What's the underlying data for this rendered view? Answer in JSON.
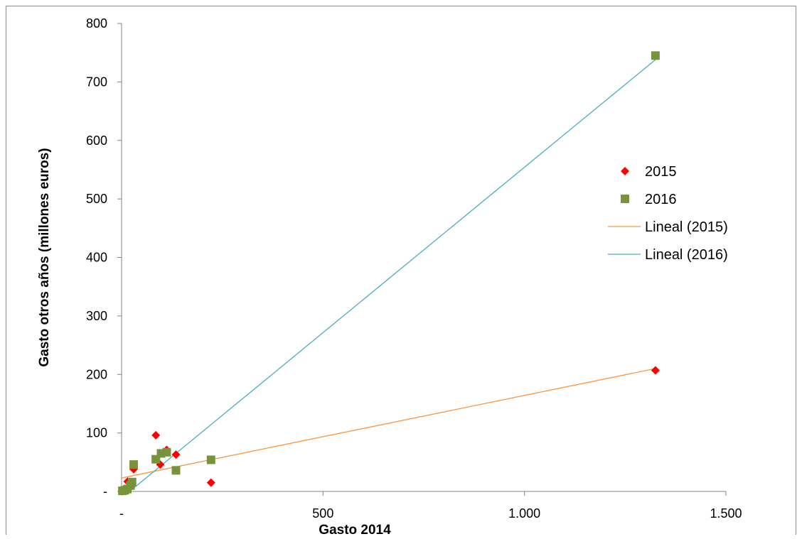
{
  "chart_data": {
    "type": "scatter",
    "xlabel": "Gasto 2014",
    "ylabel": "Gasto otros años (millones euros)",
    "xlim": [
      0,
      1500
    ],
    "ylim": [
      0,
      800
    ],
    "x_ticks": [
      {
        "value": 0,
        "label": "-"
      },
      {
        "value": 500,
        "label": "500"
      },
      {
        "value": 1000,
        "label": "1.000"
      },
      {
        "value": 1500,
        "label": "1.500"
      }
    ],
    "y_ticks": [
      {
        "value": 0,
        "label": "-"
      },
      {
        "value": 100,
        "label": "100"
      },
      {
        "value": 200,
        "label": "200"
      },
      {
        "value": 300,
        "label": "300"
      },
      {
        "value": 400,
        "label": "400"
      },
      {
        "value": 500,
        "label": "500"
      },
      {
        "value": 600,
        "label": "600"
      },
      {
        "value": 700,
        "label": "700"
      },
      {
        "value": 800,
        "label": "800"
      }
    ],
    "grid": false,
    "legend_position": "right",
    "series": [
      {
        "name": "2015",
        "marker": "diamond",
        "color": "#ff0000",
        "points": [
          {
            "x": 2,
            "y": 1
          },
          {
            "x": 6,
            "y": 2
          },
          {
            "x": 10,
            "y": 4
          },
          {
            "x": 15,
            "y": 17
          },
          {
            "x": 22,
            "y": 12
          },
          {
            "x": 30,
            "y": 38
          },
          {
            "x": 85,
            "y": 96
          },
          {
            "x": 96,
            "y": 46
          },
          {
            "x": 112,
            "y": 71
          },
          {
            "x": 135,
            "y": 63
          },
          {
            "x": 222,
            "y": 15
          },
          {
            "x": 1325,
            "y": 207
          }
        ]
      },
      {
        "name": "2016",
        "marker": "square",
        "color": "#77933c",
        "points": [
          {
            "x": 2,
            "y": 1
          },
          {
            "x": 8,
            "y": 2
          },
          {
            "x": 14,
            "y": 4
          },
          {
            "x": 22,
            "y": 10
          },
          {
            "x": 26,
            "y": 16
          },
          {
            "x": 30,
            "y": 46
          },
          {
            "x": 85,
            "y": 55
          },
          {
            "x": 98,
            "y": 65
          },
          {
            "x": 112,
            "y": 67
          },
          {
            "x": 135,
            "y": 36
          },
          {
            "x": 222,
            "y": 54
          },
          {
            "x": 1325,
            "y": 745
          }
        ]
      }
    ],
    "trendlines": [
      {
        "name": "Lineal (2015)",
        "color": "#f79646",
        "x": [
          0,
          1325
        ],
        "y": [
          23,
          210
        ]
      },
      {
        "name": "Lineal (2016)",
        "color": "#4bacc6",
        "x": [
          20,
          1325
        ],
        "y": [
          0,
          738
        ]
      }
    ]
  }
}
